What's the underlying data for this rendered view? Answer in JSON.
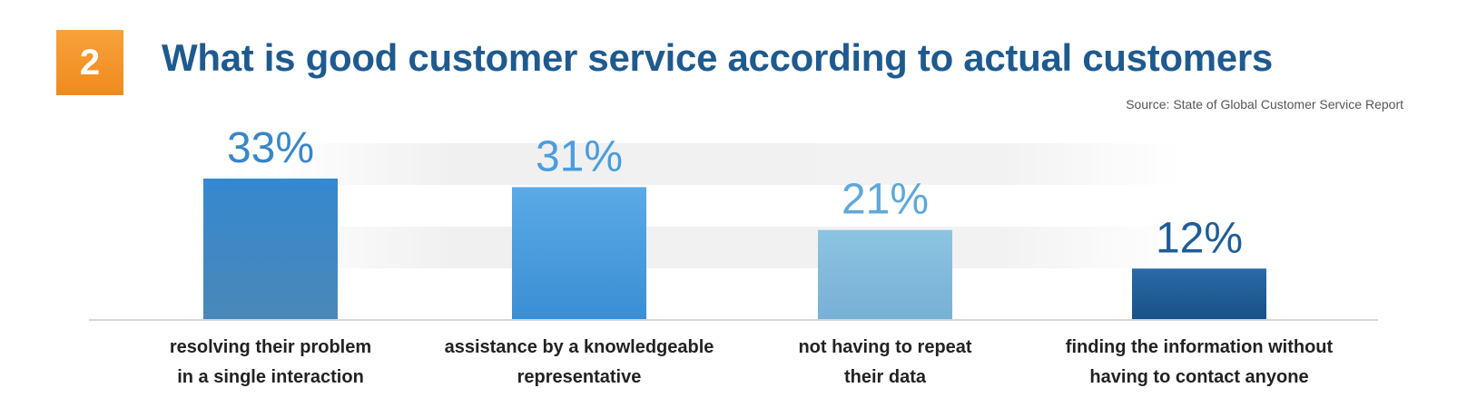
{
  "badge": {
    "number": "2"
  },
  "title": "What is good customer service according to actual customers",
  "source": "Source: State of Global Customer Service Report",
  "colors": {
    "badge": "#f39425",
    "title": "#1f5a8f",
    "bar_colors": [
      "#3a86c8",
      "#4a9de0",
      "#86bedf",
      "#1f5d97"
    ]
  },
  "chart_data": {
    "type": "bar",
    "categories": [
      [
        "resolving their problem",
        "in a single interaction"
      ],
      [
        "assistance by a knowledgeable",
        "representative"
      ],
      [
        "not having to repeat",
        "their data"
      ],
      [
        "finding the information without",
        "having to contact anyone"
      ]
    ],
    "values": [
      33,
      31,
      21,
      12
    ],
    "value_labels": [
      "33%",
      "31%",
      "21%",
      "12%"
    ],
    "ylim": [
      0,
      33
    ],
    "grid": false,
    "legend": "none"
  }
}
